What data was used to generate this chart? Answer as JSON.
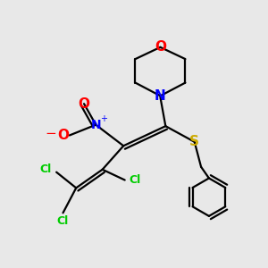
{
  "bg_color": "#e8e8e8",
  "atom_colors": {
    "C": "#000000",
    "N": "#0000ff",
    "O": "#ff0000",
    "S": "#ccaa00",
    "Cl": "#00cc00"
  },
  "bond_color": "#000000",
  "figsize": [
    3.0,
    3.0
  ],
  "dpi": 100,
  "lw": 1.6
}
